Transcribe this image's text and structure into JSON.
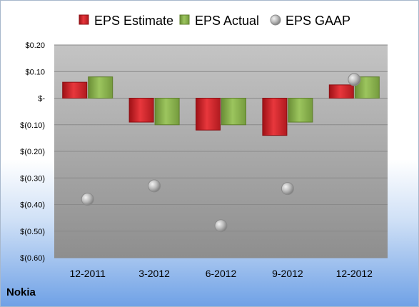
{
  "company": "Nokia",
  "colors": {
    "estimate": "#d42026",
    "actual": "#8db452",
    "gaap": "#a9a9a9"
  },
  "chart_data": {
    "type": "bar",
    "title": "",
    "xlabel": "",
    "ylabel": "",
    "categories": [
      "12-2011",
      "3-2012",
      "6-2012",
      "9-2012",
      "12-2012"
    ],
    "ylim": [
      -0.6,
      0.2
    ],
    "yticks": [
      0.2,
      0.1,
      0,
      -0.1,
      -0.2,
      -0.3,
      -0.4,
      -0.5,
      -0.6
    ],
    "ytick_labels": [
      "$0.20",
      "$0.10",
      "$-",
      "$(0.10)",
      "$(0.20)",
      "$(0.30)",
      "$(0.40)",
      "$(0.50)",
      "$(0.60)"
    ],
    "grid": true,
    "legend_position": "top",
    "series": [
      {
        "name": "EPS Estimate",
        "kind": "bar",
        "values": [
          0.06,
          -0.09,
          -0.12,
          -0.14,
          0.05
        ]
      },
      {
        "name": "EPS Actual",
        "kind": "bar",
        "values": [
          0.08,
          -0.1,
          -0.1,
          -0.09,
          0.08
        ]
      },
      {
        "name": "EPS GAAP",
        "kind": "marker",
        "values": [
          -0.38,
          -0.33,
          -0.48,
          -0.34,
          0.07
        ]
      }
    ]
  }
}
